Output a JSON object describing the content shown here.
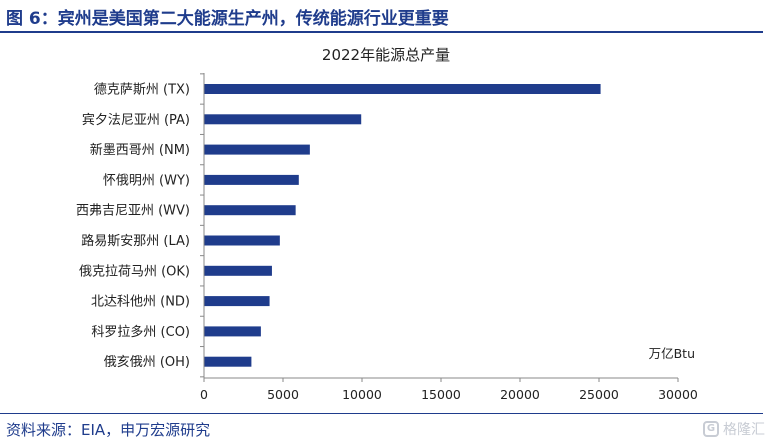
{
  "figure": {
    "title": "图 6：宾州是美国第二大能源生产州，传统能源行业更重要",
    "source": "资料来源：EIA，申万宏源研究",
    "watermark": "格隆汇",
    "watermark_icon": "G"
  },
  "chart_data": {
    "type": "bar",
    "orientation": "horizontal",
    "title": "2022年能源总产量",
    "unit_label": "万亿Btu",
    "categories": [
      "德克萨斯州 (TX)",
      "宾夕法尼亚州 (PA)",
      "新墨西哥州 (NM)",
      "怀俄明州 (WY)",
      "西弗吉尼亚州 (WV)",
      "路易斯安那州 (LA)",
      "俄克拉荷马州 (OK)",
      "北达科他州 (ND)",
      "科罗拉多州 (CO)",
      "俄亥俄州 (OH)"
    ],
    "values": [
      25100,
      9950,
      6700,
      6000,
      5800,
      4800,
      4300,
      4150,
      3600,
      3000
    ],
    "xlim": [
      0,
      30000
    ],
    "xticks": [
      0,
      5000,
      10000,
      15000,
      20000,
      25000,
      30000
    ],
    "bar_color": "#1f3c8c",
    "grid": false,
    "legend": "none"
  }
}
